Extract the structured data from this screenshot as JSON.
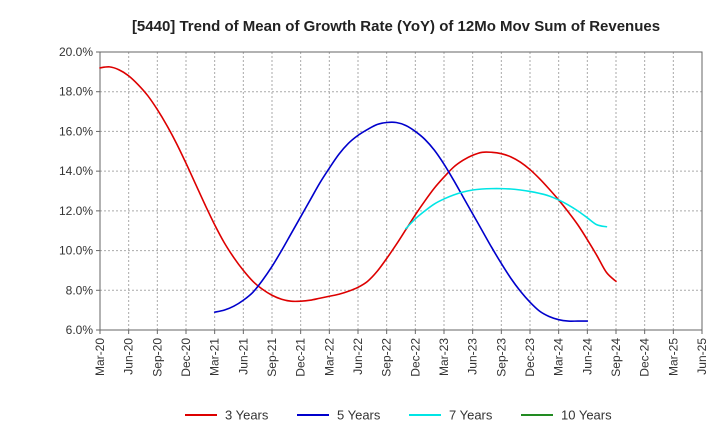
{
  "chart_data": {
    "type": "line",
    "title": "[5440]  Trend of Mean of Growth Rate (YoY) of 12Mo Mov Sum of Revenues",
    "xlabel": "",
    "ylabel": "",
    "ylim": [
      6.0,
      20.0
    ],
    "yticks": [
      6.0,
      8.0,
      10.0,
      12.0,
      14.0,
      16.0,
      18.0,
      20.0
    ],
    "ytick_labels": [
      "6.0%",
      "8.0%",
      "10.0%",
      "12.0%",
      "14.0%",
      "16.0%",
      "18.0%",
      "20.0%"
    ],
    "xlim": [
      0,
      63
    ],
    "xtick_labels": [
      "Mar-20",
      "Jun-20",
      "Sep-20",
      "Dec-20",
      "Mar-21",
      "Jun-21",
      "Sep-21",
      "Dec-21",
      "Mar-22",
      "Jun-22",
      "Sep-22",
      "Dec-22",
      "Mar-23",
      "Jun-23",
      "Sep-23",
      "Dec-23",
      "Mar-24",
      "Jun-24",
      "Sep-24",
      "Dec-24",
      "Mar-25",
      "Jun-25"
    ],
    "grid": true,
    "legend_position": "bottom",
    "series": [
      {
        "name": "3 Years",
        "color": "#dd0000",
        "points": [
          [
            0,
            19.2
          ],
          [
            1,
            19.25
          ],
          [
            2,
            19.1
          ],
          [
            3,
            18.8
          ],
          [
            4,
            18.35
          ],
          [
            5,
            17.8
          ],
          [
            6,
            17.1
          ],
          [
            7,
            16.3
          ],
          [
            8,
            15.4
          ],
          [
            9,
            14.4
          ],
          [
            10,
            13.35
          ],
          [
            11,
            12.3
          ],
          [
            12,
            11.3
          ],
          [
            13,
            10.4
          ],
          [
            14,
            9.65
          ],
          [
            15,
            9.0
          ],
          [
            16,
            8.45
          ],
          [
            17,
            8.05
          ],
          [
            18,
            7.75
          ],
          [
            19,
            7.55
          ],
          [
            20,
            7.45
          ],
          [
            21,
            7.45
          ],
          [
            22,
            7.5
          ],
          [
            23,
            7.6
          ],
          [
            24,
            7.7
          ],
          [
            25,
            7.8
          ],
          [
            26,
            7.95
          ],
          [
            27,
            8.15
          ],
          [
            28,
            8.45
          ],
          [
            29,
            8.95
          ],
          [
            30,
            9.6
          ],
          [
            31,
            10.3
          ],
          [
            32,
            11.05
          ],
          [
            33,
            11.8
          ],
          [
            34,
            12.5
          ],
          [
            35,
            13.15
          ],
          [
            36,
            13.7
          ],
          [
            37,
            14.2
          ],
          [
            38,
            14.55
          ],
          [
            39,
            14.8
          ],
          [
            40,
            14.95
          ],
          [
            41,
            14.95
          ],
          [
            42,
            14.88
          ],
          [
            43,
            14.72
          ],
          [
            44,
            14.45
          ],
          [
            45,
            14.08
          ],
          [
            46,
            13.62
          ],
          [
            47,
            13.1
          ],
          [
            48,
            12.55
          ],
          [
            49,
            11.95
          ],
          [
            50,
            11.3
          ],
          [
            51,
            10.55
          ],
          [
            52,
            9.75
          ],
          [
            53,
            8.9
          ],
          [
            54,
            8.45
          ]
        ]
      },
      {
        "name": "5 Years",
        "color": "#0000cc",
        "points": [
          [
            12,
            6.9
          ],
          [
            13,
            7.0
          ],
          [
            14,
            7.2
          ],
          [
            15,
            7.5
          ],
          [
            16,
            7.9
          ],
          [
            17,
            8.5
          ],
          [
            18,
            9.2
          ],
          [
            19,
            10.0
          ],
          [
            20,
            10.85
          ],
          [
            21,
            11.7
          ],
          [
            22,
            12.55
          ],
          [
            23,
            13.4
          ],
          [
            24,
            14.15
          ],
          [
            25,
            14.85
          ],
          [
            26,
            15.4
          ],
          [
            27,
            15.8
          ],
          [
            28,
            16.1
          ],
          [
            29,
            16.35
          ],
          [
            30,
            16.45
          ],
          [
            31,
            16.45
          ],
          [
            32,
            16.3
          ],
          [
            33,
            16.0
          ],
          [
            34,
            15.6
          ],
          [
            35,
            15.05
          ],
          [
            36,
            14.35
          ],
          [
            37,
            13.55
          ],
          [
            38,
            12.7
          ],
          [
            39,
            11.85
          ],
          [
            40,
            11.0
          ],
          [
            41,
            10.15
          ],
          [
            42,
            9.35
          ],
          [
            43,
            8.6
          ],
          [
            44,
            7.95
          ],
          [
            45,
            7.4
          ],
          [
            46,
            6.95
          ],
          [
            47,
            6.68
          ],
          [
            48,
            6.52
          ],
          [
            49,
            6.45
          ],
          [
            50,
            6.45
          ],
          [
            51,
            6.45
          ]
        ]
      },
      {
        "name": "7 Years",
        "color": "#00e5e5",
        "points": [
          [
            32,
            11.1
          ],
          [
            33,
            11.6
          ],
          [
            34,
            12.0
          ],
          [
            35,
            12.35
          ],
          [
            36,
            12.6
          ],
          [
            37,
            12.8
          ],
          [
            38,
            12.95
          ],
          [
            39,
            13.05
          ],
          [
            40,
            13.1
          ],
          [
            41,
            13.12
          ],
          [
            42,
            13.12
          ],
          [
            43,
            13.1
          ],
          [
            44,
            13.05
          ],
          [
            45,
            12.98
          ],
          [
            46,
            12.88
          ],
          [
            47,
            12.75
          ],
          [
            48,
            12.55
          ],
          [
            49,
            12.3
          ],
          [
            50,
            12.0
          ],
          [
            51,
            11.65
          ],
          [
            52,
            11.3
          ],
          [
            53,
            11.2
          ]
        ]
      },
      {
        "name": "10 Years",
        "color": "#228b22",
        "points": []
      }
    ]
  }
}
